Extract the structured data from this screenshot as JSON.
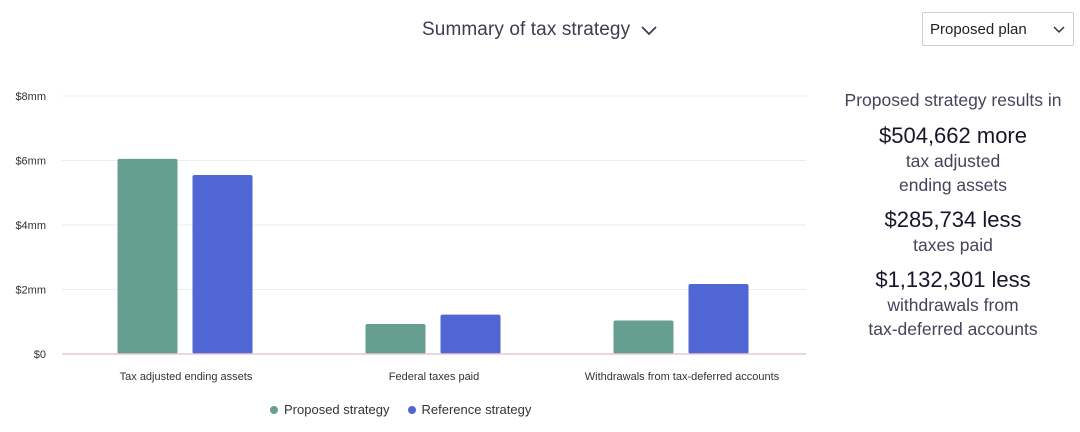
{
  "header": {
    "title": "Summary of tax strategy",
    "plan_select": {
      "value": "Proposed plan"
    }
  },
  "colors": {
    "proposed": "#669e8f",
    "reference": "#5066d2",
    "grid": "#ececf0",
    "baseline": "#e6c9d0"
  },
  "chart_data": {
    "type": "bar",
    "categories": [
      "Tax adjusted ending assets",
      "Federal taxes paid",
      "Withdrawals from tax-deferred accounts"
    ],
    "series": [
      {
        "name": "Proposed strategy",
        "values": [
          6.05,
          0.93,
          1.04
        ]
      },
      {
        "name": "Reference strategy",
        "values": [
          5.55,
          1.22,
          2.17
        ]
      }
    ],
    "yticks": [
      "$0",
      "$2mm",
      "$4mm",
      "$6mm",
      "$8mm"
    ],
    "ylim": [
      0,
      8
    ],
    "grid": true,
    "legend": "bottom-center"
  },
  "summary": {
    "heading": "Proposed strategy results in",
    "items": [
      {
        "amount": "$504,662 more",
        "desc": [
          "tax adjusted",
          "ending assets"
        ]
      },
      {
        "amount": "$285,734 less",
        "desc": [
          "taxes paid"
        ]
      },
      {
        "amount": "$1,132,301 less",
        "desc": [
          "withdrawals from",
          "tax-deferred accounts"
        ]
      }
    ]
  }
}
